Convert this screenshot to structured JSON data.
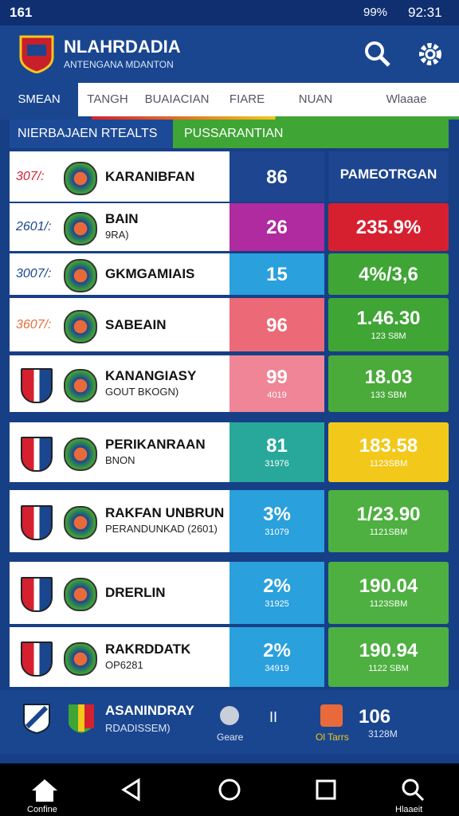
{
  "status": {
    "left": "161",
    "battery": "99%",
    "time": "92:31"
  },
  "header": {
    "title": "NLAHRDADIA",
    "subtitle": "ANTENGANA MDANTON"
  },
  "tabs": [
    "SMEAN",
    "TANGH",
    "BUAIACIAN",
    "FIARE",
    "NUAN",
    "Wlaaae"
  ],
  "section_tabs": [
    "NIERBAJAEN RTEALTS",
    "PUSSARANTIAN"
  ],
  "rows": [
    {
      "rank": "307/:",
      "name": "KARANIBFAN",
      "sub": null,
      "mid": "86",
      "mid_sub": null,
      "right": "PAMEOTRGAN",
      "right_sub": null,
      "mid_color": "#1d4590",
      "right_color": "#1d4590"
    },
    {
      "rank": "2601/:",
      "name": "BAIN",
      "sub": "9RA)",
      "mid": "26",
      "mid_sub": null,
      "right": "235.9%",
      "right_sub": null,
      "mid_color": "#b02aa0",
      "right_color": "#d62030"
    },
    {
      "rank": "3007/:",
      "name": "GKMGAMIAIS",
      "sub": null,
      "mid": "15",
      "mid_sub": null,
      "right": "4%/3,6",
      "right_sub": null,
      "mid_color": "#2aa0dc",
      "right_color": "#3fa535"
    },
    {
      "rank": "3607/:",
      "name": "SABEAIN",
      "sub": null,
      "mid": "96",
      "mid_sub": null,
      "right": "1.46.30",
      "right_sub": "123 S8M",
      "mid_color": "#ec6a78",
      "right_color": "#3fa535"
    },
    {
      "rank": null,
      "name": "KANANGIASY",
      "sub": "GOUT BKOGN)",
      "mid": "99",
      "mid_sub": "4019",
      "right": "18.03",
      "right_sub": "133 SBM",
      "mid_color": "#f08597",
      "right_color": "#4aaa3a"
    },
    {
      "rank": null,
      "name": "PERIKANRAAN",
      "sub": "BNON",
      "mid": "81",
      "mid_sub": "31976",
      "right": "183.58",
      "right_sub": "1123SBM",
      "mid_color": "#28a89a",
      "right_color": "#f2c81a"
    },
    {
      "rank": null,
      "name": "RAKFAN UNBRUN",
      "sub": "PERANDUNKAD (2601)",
      "mid": "3%",
      "mid_sub": "31079",
      "right": "1/23.90",
      "right_sub": "1121SBM",
      "mid_color": "#2aa0dc",
      "right_color": "#4db040"
    },
    {
      "rank": null,
      "name": "DRERLIN",
      "sub": null,
      "mid": "2%",
      "mid_sub": "31925",
      "right": "190.04",
      "right_sub": "1123SBM",
      "mid_color": "#2aa0dc",
      "right_color": "#4db040"
    },
    {
      "rank": null,
      "name": "RAKRDDATK",
      "sub": "OP6281",
      "mid": "2%",
      "mid_sub": "34919",
      "right": "190.94",
      "right_sub": "1122 SBM",
      "mid_color": "#2aa0dc",
      "right_color": "#4db040"
    }
  ],
  "bottom": {
    "name": "ASANINDRAY",
    "sub": "RDADISSEM)",
    "gear": "Geare",
    "pause": "II",
    "teams": "Ol Tarrs",
    "value": "106",
    "value_sub": "3128M"
  },
  "nav": {
    "home": "Confine",
    "search": "Hlaaeit"
  }
}
